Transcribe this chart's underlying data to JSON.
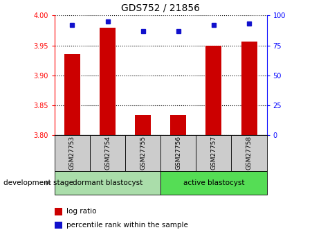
{
  "title": "GDS752 / 21856",
  "samples": [
    "GSM27753",
    "GSM27754",
    "GSM27755",
    "GSM27756",
    "GSM27757",
    "GSM27758"
  ],
  "log_ratio": [
    3.935,
    3.98,
    3.833,
    3.833,
    3.95,
    3.957
  ],
  "percentile_rank": [
    92,
    95,
    87,
    87,
    92,
    93
  ],
  "ylim_left": [
    3.8,
    4.0
  ],
  "ylim_right": [
    0,
    100
  ],
  "yticks_left": [
    3.8,
    3.85,
    3.9,
    3.95,
    4.0
  ],
  "yticks_right": [
    0,
    25,
    50,
    75,
    100
  ],
  "bar_color": "#cc0000",
  "dot_color": "#1111cc",
  "bg_color": "#ffffff",
  "groups": [
    {
      "label": "dormant blastocyst",
      "indices": [
        0,
        1,
        2
      ],
      "color": "#aaddaa"
    },
    {
      "label": "active blastocyst",
      "indices": [
        3,
        4,
        5
      ],
      "color": "#55dd55"
    }
  ],
  "group_label": "development stage",
  "legend_bar_label": "log ratio",
  "legend_dot_label": "percentile rank within the sample",
  "tick_cell_color": "#cccccc"
}
